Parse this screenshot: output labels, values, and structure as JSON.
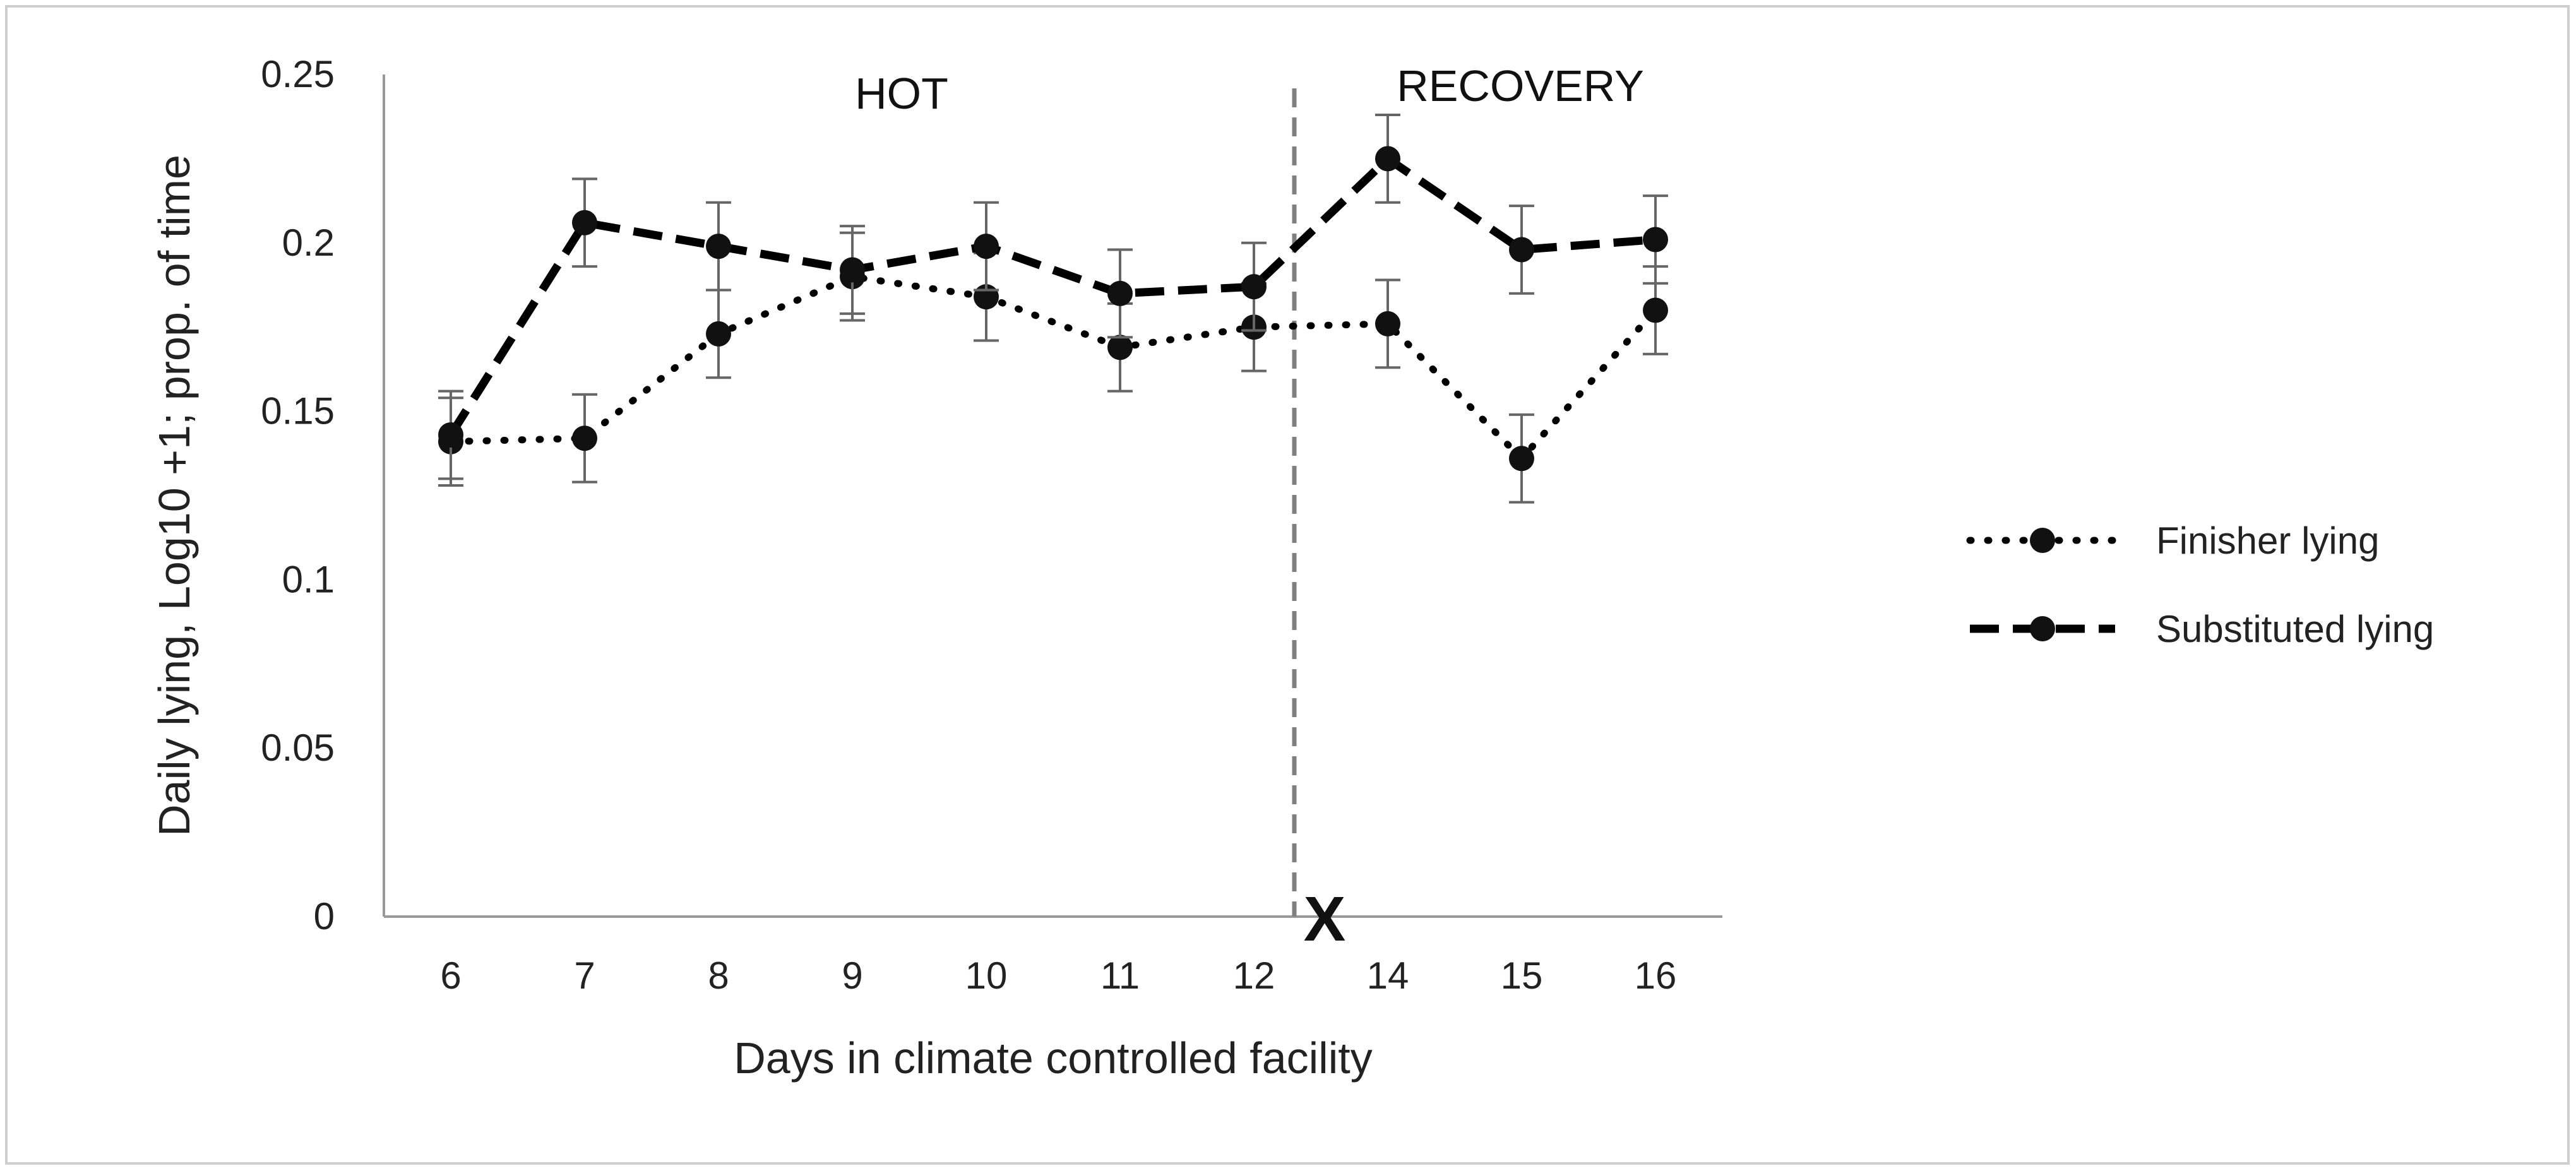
{
  "chart_data": {
    "type": "line",
    "title": "",
    "xlabel": "Days in climate controlled facility",
    "ylabel": "Daily lying, Log10 +1; prop. of time",
    "categories": [
      "6",
      "7",
      "8",
      "9",
      "10",
      "11",
      "12",
      "14",
      "15",
      "16"
    ],
    "ylim": [
      0,
      0.25
    ],
    "yticks": [
      "0",
      "0.05",
      "0.1",
      "0.15",
      "0.2",
      "0.25"
    ],
    "grid": false,
    "legend_position": "right",
    "annotations": {
      "phase_hot": "HOT",
      "phase_recovery": "RECOVERY",
      "axis_break": "X"
    },
    "series": [
      {
        "name": "Finisher lying",
        "style": "dotted",
        "color": "#000000",
        "values": [
          0.141,
          0.142,
          0.173,
          0.19,
          0.184,
          0.169,
          0.175,
          0.176,
          0.136,
          0.18
        ],
        "errors": [
          0.013,
          0.013,
          0.013,
          0.013,
          0.013,
          0.013,
          0.013,
          0.013,
          0.013,
          0.013
        ]
      },
      {
        "name": "Substituted lying",
        "style": "dashed",
        "color": "#000000",
        "values": [
          0.143,
          0.206,
          0.199,
          0.192,
          0.199,
          0.185,
          0.187,
          0.225,
          0.198,
          0.201
        ],
        "errors": [
          0.013,
          0.013,
          0.013,
          0.013,
          0.013,
          0.013,
          0.013,
          0.013,
          0.013,
          0.013
        ]
      }
    ]
  }
}
